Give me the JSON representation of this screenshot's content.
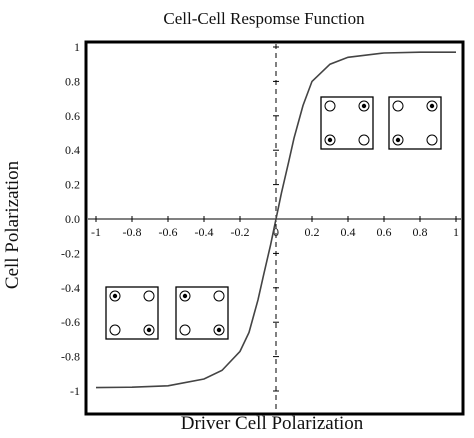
{
  "chart_data": {
    "type": "line",
    "title": "Cell-Cell Respomse Function",
    "xlabel": "Driver Cell Polarization",
    "ylabel": "Cell Polarization",
    "xlim": [
      -1.05,
      1.05
    ],
    "ylim": [
      -1.05,
      1.05
    ],
    "x_ticks": [
      "-1",
      "-0.8",
      "-0.6",
      "-0.4",
      "-0.2",
      "0",
      "0.2",
      "0.4",
      "0.6",
      "0.8",
      "1"
    ],
    "y_ticks": [
      "1",
      "0.8",
      "0.6",
      "0.4",
      "0.2",
      "0.0",
      "-0.2",
      "-0.4",
      "-0.6",
      "-0.8",
      "-1"
    ],
    "x_tick_values": [
      -1,
      -0.8,
      -0.6,
      -0.4,
      -0.2,
      0,
      0.2,
      0.4,
      0.6,
      0.8,
      1
    ],
    "y_tick_values": [
      1,
      0.8,
      0.6,
      0.4,
      0.2,
      0,
      -0.2,
      -0.4,
      -0.6,
      -0.8,
      -1
    ],
    "grid": false,
    "series": [
      {
        "x": [
          -1.0,
          -0.8,
          -0.6,
          -0.4,
          -0.3,
          -0.2,
          -0.15,
          -0.1,
          -0.07,
          -0.05,
          -0.03,
          -0.01,
          0.0,
          0.01,
          0.03,
          0.05,
          0.07,
          0.1,
          0.15,
          0.2,
          0.3,
          0.4,
          0.6,
          0.8,
          1.0
        ],
        "y": [
          -0.98,
          -0.978,
          -0.97,
          -0.93,
          -0.88,
          -0.77,
          -0.66,
          -0.47,
          -0.33,
          -0.24,
          -0.15,
          -0.05,
          0.0,
          0.05,
          0.15,
          0.24,
          0.33,
          0.47,
          0.66,
          0.8,
          0.9,
          0.94,
          0.965,
          0.97,
          0.97
        ]
      }
    ],
    "insets": [
      {
        "name": "cell-state-positive-a",
        "dots": [
          "top-right",
          "bottom-left"
        ]
      },
      {
        "name": "cell-state-positive-b",
        "dots": [
          "top-right",
          "bottom-left"
        ]
      },
      {
        "name": "cell-state-negative-a",
        "dots": [
          "top-left",
          "bottom-right"
        ]
      },
      {
        "name": "cell-state-negative-b",
        "dots": [
          "top-left",
          "bottom-right"
        ]
      }
    ],
    "colors": {
      "curve": "#444444",
      "axes": "#000000",
      "frame": "#000000"
    }
  }
}
